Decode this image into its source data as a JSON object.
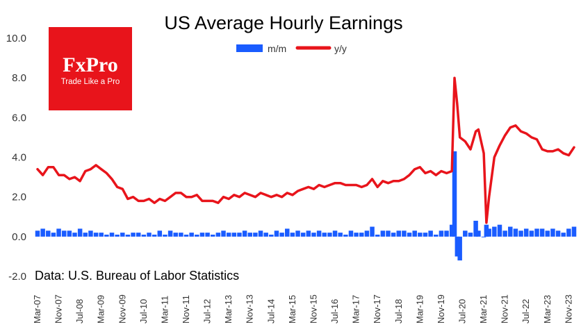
{
  "chart_data": {
    "type": "bar+line",
    "title": "US Average Hourly Earnings",
    "legend": [
      {
        "name": "m/m",
        "type": "bar",
        "color": "#1a5cff"
      },
      {
        "name": "y/y",
        "type": "line",
        "color": "#e8141b"
      }
    ],
    "legend_position": "top-center",
    "ylim": [
      -2.0,
      10.0
    ],
    "yticks": [
      "10.0",
      "8.0",
      "6.0",
      "4.0",
      "2.0",
      "0.0",
      "-2.0"
    ],
    "yticks_values": [
      10,
      8,
      6,
      4,
      2,
      0,
      -2
    ],
    "xticks": [
      "Mar-07",
      "Nov-07",
      "Jul-08",
      "Mar-09",
      "Nov-09",
      "Jul-10",
      "Mar-11",
      "Nov-11",
      "Jul-12",
      "Mar-13",
      "Nov-13",
      "Jul-14",
      "Mar-15",
      "Nov-15",
      "Jul-16",
      "Mar-17",
      "Nov-17",
      "Jul-18",
      "Mar-19",
      "Nov-19",
      "Jul-20",
      "Mar-21",
      "Nov-21",
      "Jul-22",
      "Mar-23",
      "Nov-23"
    ],
    "x_range": [
      "Mar-07",
      "Jan-24"
    ],
    "grid": false,
    "source": "Data: U.S. Bureau of Labor Statistics",
    "yy_series": {
      "name": "y/y",
      "points": [
        [
          "Mar-07",
          3.4
        ],
        [
          "May-07",
          3.1
        ],
        [
          "Jul-07",
          3.5
        ],
        [
          "Sep-07",
          3.5
        ],
        [
          "Nov-07",
          3.1
        ],
        [
          "Jan-08",
          3.1
        ],
        [
          "Mar-08",
          2.9
        ],
        [
          "May-08",
          3.0
        ],
        [
          "Jul-08",
          2.8
        ],
        [
          "Sep-08",
          3.3
        ],
        [
          "Nov-08",
          3.4
        ],
        [
          "Jan-09",
          3.6
        ],
        [
          "Mar-09",
          3.4
        ],
        [
          "May-09",
          3.2
        ],
        [
          "Jul-09",
          2.9
        ],
        [
          "Sep-09",
          2.5
        ],
        [
          "Nov-09",
          2.4
        ],
        [
          "Jan-10",
          1.9
        ],
        [
          "Mar-10",
          2.0
        ],
        [
          "May-10",
          1.8
        ],
        [
          "Jul-10",
          1.8
        ],
        [
          "Sep-10",
          1.9
        ],
        [
          "Nov-10",
          1.7
        ],
        [
          "Jan-11",
          1.9
        ],
        [
          "Mar-11",
          1.8
        ],
        [
          "May-11",
          2.0
        ],
        [
          "Jul-11",
          2.2
        ],
        [
          "Sep-11",
          2.2
        ],
        [
          "Nov-11",
          2.0
        ],
        [
          "Jan-12",
          2.0
        ],
        [
          "Mar-12",
          2.1
        ],
        [
          "May-12",
          1.8
        ],
        [
          "Jul-12",
          1.8
        ],
        [
          "Sep-12",
          1.8
        ],
        [
          "Nov-12",
          1.7
        ],
        [
          "Jan-13",
          2.0
        ],
        [
          "Mar-13",
          1.9
        ],
        [
          "May-13",
          2.1
        ],
        [
          "Jul-13",
          2.0
        ],
        [
          "Sep-13",
          2.2
        ],
        [
          "Nov-13",
          2.1
        ],
        [
          "Jan-14",
          2.0
        ],
        [
          "Mar-14",
          2.2
        ],
        [
          "May-14",
          2.1
        ],
        [
          "Jul-14",
          2.0
        ],
        [
          "Sep-14",
          2.1
        ],
        [
          "Nov-14",
          2.0
        ],
        [
          "Jan-15",
          2.2
        ],
        [
          "Mar-15",
          2.1
        ],
        [
          "May-15",
          2.3
        ],
        [
          "Jul-15",
          2.4
        ],
        [
          "Sep-15",
          2.5
        ],
        [
          "Nov-15",
          2.4
        ],
        [
          "Jan-16",
          2.6
        ],
        [
          "Mar-16",
          2.5
        ],
        [
          "May-16",
          2.6
        ],
        [
          "Jul-16",
          2.7
        ],
        [
          "Sep-16",
          2.7
        ],
        [
          "Nov-16",
          2.6
        ],
        [
          "Jan-17",
          2.6
        ],
        [
          "Mar-17",
          2.6
        ],
        [
          "May-17",
          2.5
        ],
        [
          "Jul-17",
          2.6
        ],
        [
          "Sep-17",
          2.9
        ],
        [
          "Nov-17",
          2.5
        ],
        [
          "Jan-18",
          2.8
        ],
        [
          "Mar-18",
          2.7
        ],
        [
          "May-18",
          2.8
        ],
        [
          "Jul-18",
          2.8
        ],
        [
          "Sep-18",
          2.9
        ],
        [
          "Nov-18",
          3.1
        ],
        [
          "Jan-19",
          3.4
        ],
        [
          "Mar-19",
          3.5
        ],
        [
          "May-19",
          3.2
        ],
        [
          "Jul-19",
          3.3
        ],
        [
          "Sep-19",
          3.1
        ],
        [
          "Nov-19",
          3.3
        ],
        [
          "Jan-20",
          3.2
        ],
        [
          "Mar-20",
          3.3
        ],
        [
          "Apr-20",
          8.0
        ],
        [
          "May-20",
          6.7
        ],
        [
          "Jun-20",
          5.0
        ],
        [
          "Aug-20",
          4.8
        ],
        [
          "Oct-20",
          4.4
        ],
        [
          "Dec-20",
          5.3
        ],
        [
          "Jan-21",
          5.4
        ],
        [
          "Mar-21",
          4.2
        ],
        [
          "Apr-21",
          0.7
        ],
        [
          "May-21",
          2.0
        ],
        [
          "Jul-21",
          4.0
        ],
        [
          "Sep-21",
          4.6
        ],
        [
          "Nov-21",
          5.1
        ],
        [
          "Jan-22",
          5.5
        ],
        [
          "Mar-22",
          5.6
        ],
        [
          "May-22",
          5.3
        ],
        [
          "Jul-22",
          5.2
        ],
        [
          "Sep-22",
          5.0
        ],
        [
          "Nov-22",
          4.9
        ],
        [
          "Jan-23",
          4.4
        ],
        [
          "Mar-23",
          4.3
        ],
        [
          "May-23",
          4.3
        ],
        [
          "Jul-23",
          4.4
        ],
        [
          "Sep-23",
          4.2
        ],
        [
          "Nov-23",
          4.1
        ],
        [
          "Jan-24",
          4.5
        ]
      ]
    },
    "mm_series": {
      "name": "m/m",
      "points": [
        [
          "Mar-07",
          0.3
        ],
        [
          "May-07",
          0.4
        ],
        [
          "Jul-07",
          0.3
        ],
        [
          "Sep-07",
          0.2
        ],
        [
          "Nov-07",
          0.4
        ],
        [
          "Jan-08",
          0.3
        ],
        [
          "Mar-08",
          0.3
        ],
        [
          "May-08",
          0.2
        ],
        [
          "Jul-08",
          0.4
        ],
        [
          "Sep-08",
          0.2
        ],
        [
          "Nov-08",
          0.3
        ],
        [
          "Jan-09",
          0.2
        ],
        [
          "Mar-09",
          0.2
        ],
        [
          "May-09",
          0.1
        ],
        [
          "Jul-09",
          0.2
        ],
        [
          "Sep-09",
          0.1
        ],
        [
          "Nov-09",
          0.2
        ],
        [
          "Jan-10",
          0.1
        ],
        [
          "Mar-10",
          0.2
        ],
        [
          "May-10",
          0.2
        ],
        [
          "Jul-10",
          0.1
        ],
        [
          "Sep-10",
          0.2
        ],
        [
          "Nov-10",
          0.1
        ],
        [
          "Jan-11",
          0.3
        ],
        [
          "Mar-11",
          0.1
        ],
        [
          "May-11",
          0.3
        ],
        [
          "Jul-11",
          0.2
        ],
        [
          "Sep-11",
          0.2
        ],
        [
          "Nov-11",
          0.1
        ],
        [
          "Jan-12",
          0.2
        ],
        [
          "Mar-12",
          0.1
        ],
        [
          "May-12",
          0.2
        ],
        [
          "Jul-12",
          0.2
        ],
        [
          "Sep-12",
          0.1
        ],
        [
          "Nov-12",
          0.2
        ],
        [
          "Jan-13",
          0.3
        ],
        [
          "Mar-13",
          0.2
        ],
        [
          "May-13",
          0.2
        ],
        [
          "Jul-13",
          0.2
        ],
        [
          "Sep-13",
          0.3
        ],
        [
          "Nov-13",
          0.2
        ],
        [
          "Jan-14",
          0.2
        ],
        [
          "Mar-14",
          0.3
        ],
        [
          "May-14",
          0.2
        ],
        [
          "Jul-14",
          0.1
        ],
        [
          "Sep-14",
          0.3
        ],
        [
          "Nov-14",
          0.2
        ],
        [
          "Jan-15",
          0.4
        ],
        [
          "Mar-15",
          0.2
        ],
        [
          "May-15",
          0.3
        ],
        [
          "Jul-15",
          0.2
        ],
        [
          "Sep-15",
          0.3
        ],
        [
          "Nov-15",
          0.2
        ],
        [
          "Jan-16",
          0.3
        ],
        [
          "Mar-16",
          0.2
        ],
        [
          "May-16",
          0.2
        ],
        [
          "Jul-16",
          0.3
        ],
        [
          "Sep-16",
          0.2
        ],
        [
          "Nov-16",
          0.1
        ],
        [
          "Jan-17",
          0.3
        ],
        [
          "Mar-17",
          0.2
        ],
        [
          "May-17",
          0.2
        ],
        [
          "Jul-17",
          0.3
        ],
        [
          "Sep-17",
          0.5
        ],
        [
          "Nov-17",
          0.1
        ],
        [
          "Jan-18",
          0.3
        ],
        [
          "Mar-18",
          0.3
        ],
        [
          "May-18",
          0.2
        ],
        [
          "Jul-18",
          0.3
        ],
        [
          "Sep-18",
          0.3
        ],
        [
          "Nov-18",
          0.2
        ],
        [
          "Jan-19",
          0.3
        ],
        [
          "Mar-19",
          0.2
        ],
        [
          "May-19",
          0.2
        ],
        [
          "Jul-19",
          0.3
        ],
        [
          "Sep-19",
          0.1
        ],
        [
          "Nov-19",
          0.3
        ],
        [
          "Jan-20",
          0.3
        ],
        [
          "Mar-20",
          0.6
        ],
        [
          "Apr-20",
          4.3
        ],
        [
          "May-20",
          -1.0
        ],
        [
          "Jun-20",
          -1.2
        ],
        [
          "Aug-20",
          0.3
        ],
        [
          "Oct-20",
          0.2
        ],
        [
          "Dec-20",
          0.8
        ],
        [
          "Jan-21",
          0.3
        ],
        [
          "Mar-21",
          0.0
        ],
        [
          "Apr-21",
          0.6
        ],
        [
          "May-21",
          0.4
        ],
        [
          "Jul-21",
          0.5
        ],
        [
          "Sep-21",
          0.6
        ],
        [
          "Nov-21",
          0.3
        ],
        [
          "Jan-22",
          0.5
        ],
        [
          "Mar-22",
          0.4
        ],
        [
          "May-22",
          0.3
        ],
        [
          "Jul-22",
          0.4
        ],
        [
          "Sep-22",
          0.3
        ],
        [
          "Nov-22",
          0.4
        ],
        [
          "Jan-23",
          0.4
        ],
        [
          "Mar-23",
          0.3
        ],
        [
          "May-23",
          0.4
        ],
        [
          "Jul-23",
          0.3
        ],
        [
          "Sep-23",
          0.2
        ],
        [
          "Nov-23",
          0.4
        ],
        [
          "Jan-24",
          0.5
        ]
      ]
    }
  },
  "logo": {
    "name": "FxPro",
    "tagline": "Trade Like a Pro",
    "color": "#e8141b"
  }
}
